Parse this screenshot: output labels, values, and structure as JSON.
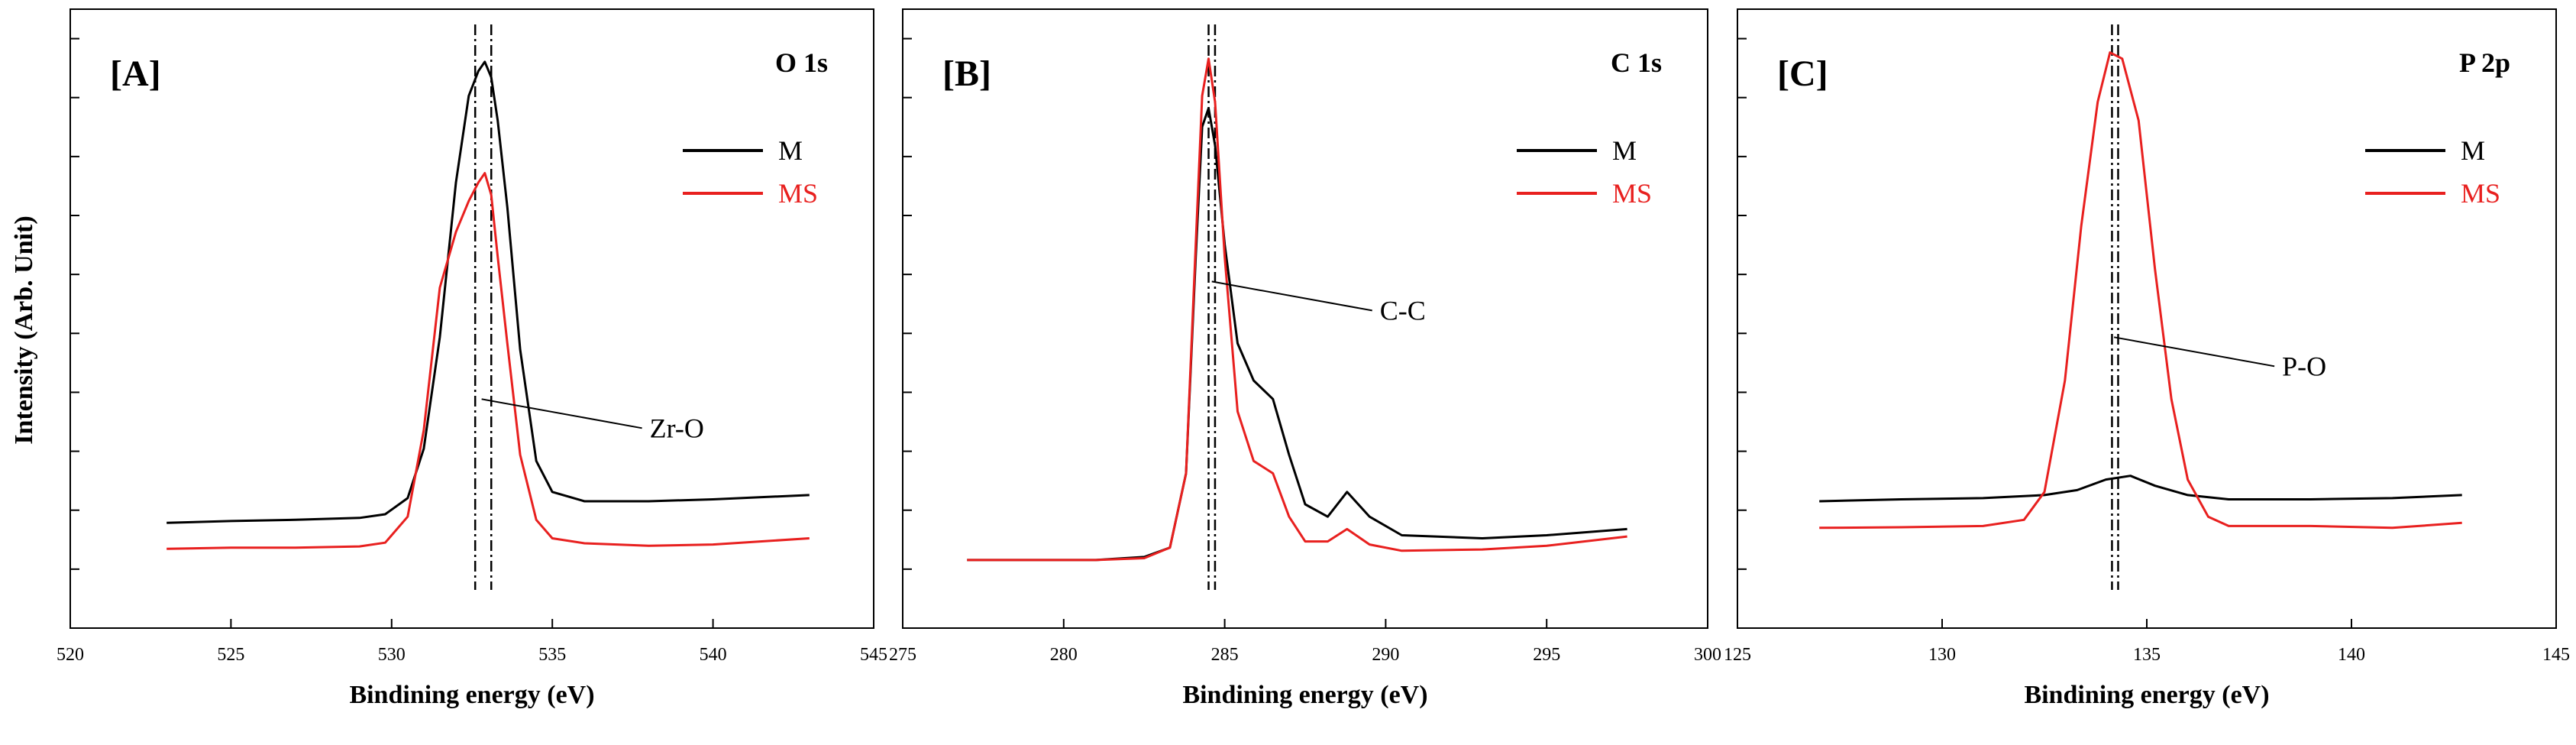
{
  "y_axis_label": "Intensity (Arb. Unit)",
  "chart_data": [
    {
      "type": "line",
      "panel_label": "[A]",
      "title": "O 1s",
      "xlabel": "Bindining energy (eV)",
      "ylabel": "Intensity (Arb. Unit)",
      "xlim": [
        520,
        545
      ],
      "ylim": [
        0,
        100
      ],
      "xticks": [
        "520",
        "525",
        "530",
        "535",
        "540",
        "545"
      ],
      "legend": "top-right",
      "series": [
        {
          "name": "M",
          "color": "#000000",
          "x": [
            523,
            525,
            527,
            529,
            529.8,
            530.5,
            531,
            531.5,
            532,
            532.4,
            532.7,
            532.9,
            533.1,
            533.3,
            533.6,
            534,
            534.5,
            535,
            536,
            538,
            540,
            543
          ],
          "y": [
            17,
            17.3,
            17.5,
            17.8,
            18.4,
            21,
            29,
            47,
            72,
            86,
            90,
            91.5,
            89,
            82,
            68,
            45,
            27,
            22,
            20.5,
            20.5,
            20.8,
            21.5
          ]
        },
        {
          "name": "MS",
          "color": "#e8201f",
          "x": [
            523,
            525,
            527,
            529,
            529.8,
            530.5,
            531,
            531.5,
            532,
            532.4,
            532.7,
            532.9,
            533.1,
            533.3,
            533.6,
            534,
            534.5,
            535,
            536,
            538,
            540,
            543
          ],
          "y": [
            12.8,
            13,
            13,
            13.2,
            13.8,
            18,
            32,
            55,
            64,
            69,
            72,
            73.5,
            70,
            60,
            46,
            28,
            17.5,
            14.5,
            13.7,
            13.3,
            13.5,
            14.5
          ]
        }
      ],
      "reference_lines": [
        532.6,
        533.1
      ],
      "annotation": {
        "text": "Zr-O",
        "x": 532.8,
        "y": 37
      }
    },
    {
      "type": "line",
      "panel_label": "[B]",
      "title": "C 1s",
      "xlabel": "Bindining energy (eV)",
      "ylabel": "Intensity (Arb. Unit)",
      "xlim": [
        275,
        300
      ],
      "ylim": [
        0,
        100
      ],
      "xticks": [
        "275",
        "280",
        "285",
        "290",
        "295",
        "300"
      ],
      "legend": "top-right",
      "series": [
        {
          "name": "M",
          "color": "#000000",
          "x": [
            277,
            279,
            281,
            282.5,
            283.3,
            283.8,
            284.1,
            284.3,
            284.5,
            284.7,
            285,
            285.4,
            285.9,
            286.5,
            287,
            287.5,
            288.2,
            288.8,
            289.5,
            290.5,
            293,
            295,
            297.5
          ],
          "y": [
            11,
            11,
            11,
            11.5,
            13,
            25,
            60,
            81,
            84,
            78,
            62,
            46,
            40,
            37,
            28,
            20,
            18,
            22,
            18,
            15,
            14.5,
            15,
            16
          ]
        },
        {
          "name": "MS",
          "color": "#e8201f",
          "x": [
            277,
            279,
            281,
            282.5,
            283.3,
            283.8,
            284.1,
            284.3,
            284.5,
            284.7,
            285,
            285.4,
            285.9,
            286.5,
            287,
            287.5,
            288.2,
            288.8,
            289.5,
            290.5,
            293,
            295,
            297.5
          ],
          "y": [
            11,
            11,
            11,
            11.3,
            13,
            25,
            62,
            86,
            92,
            85,
            60,
            35,
            27,
            25,
            18,
            14,
            14,
            16,
            13.5,
            12.5,
            12.7,
            13.3,
            14.8
          ]
        }
      ],
      "reference_lines": [
        284.5,
        284.7
      ],
      "annotation": {
        "text": "C-C",
        "x": 284.6,
        "y": 56
      }
    },
    {
      "type": "line",
      "panel_label": "[C]",
      "title": "P 2p",
      "xlabel": "Bindining energy (eV)",
      "ylabel": "Intensity (Arb. Unit)",
      "xlim": [
        125,
        145
      ],
      "ylim": [
        0,
        100
      ],
      "xticks": [
        "125",
        "130",
        "135",
        "140",
        "145"
      ],
      "legend": "top-right",
      "series": [
        {
          "name": "M",
          "color": "#000000",
          "x": [
            127,
            129,
            131,
            132.5,
            133.3,
            134,
            134.6,
            135.2,
            136,
            137,
            139,
            141,
            142.7
          ],
          "y": [
            20.5,
            20.8,
            21,
            21.5,
            22.3,
            24,
            24.6,
            23,
            21.5,
            20.8,
            20.8,
            21,
            21.5
          ]
        },
        {
          "name": "MS",
          "color": "#e8201f",
          "x": [
            127,
            129,
            131,
            132,
            132.5,
            133,
            133.4,
            133.8,
            134.1,
            134.4,
            134.8,
            135.2,
            135.6,
            136,
            136.5,
            137,
            139,
            141,
            142.7
          ],
          "y": [
            16.2,
            16.3,
            16.5,
            17.5,
            22,
            40,
            65,
            85,
            93,
            92,
            82,
            58,
            37,
            24,
            18,
            16.5,
            16.5,
            16.2,
            17
          ]
        }
      ],
      "reference_lines": [
        134.15,
        134.3
      ],
      "annotation": {
        "text": "P-O",
        "x": 134.2,
        "y": 47
      }
    }
  ]
}
